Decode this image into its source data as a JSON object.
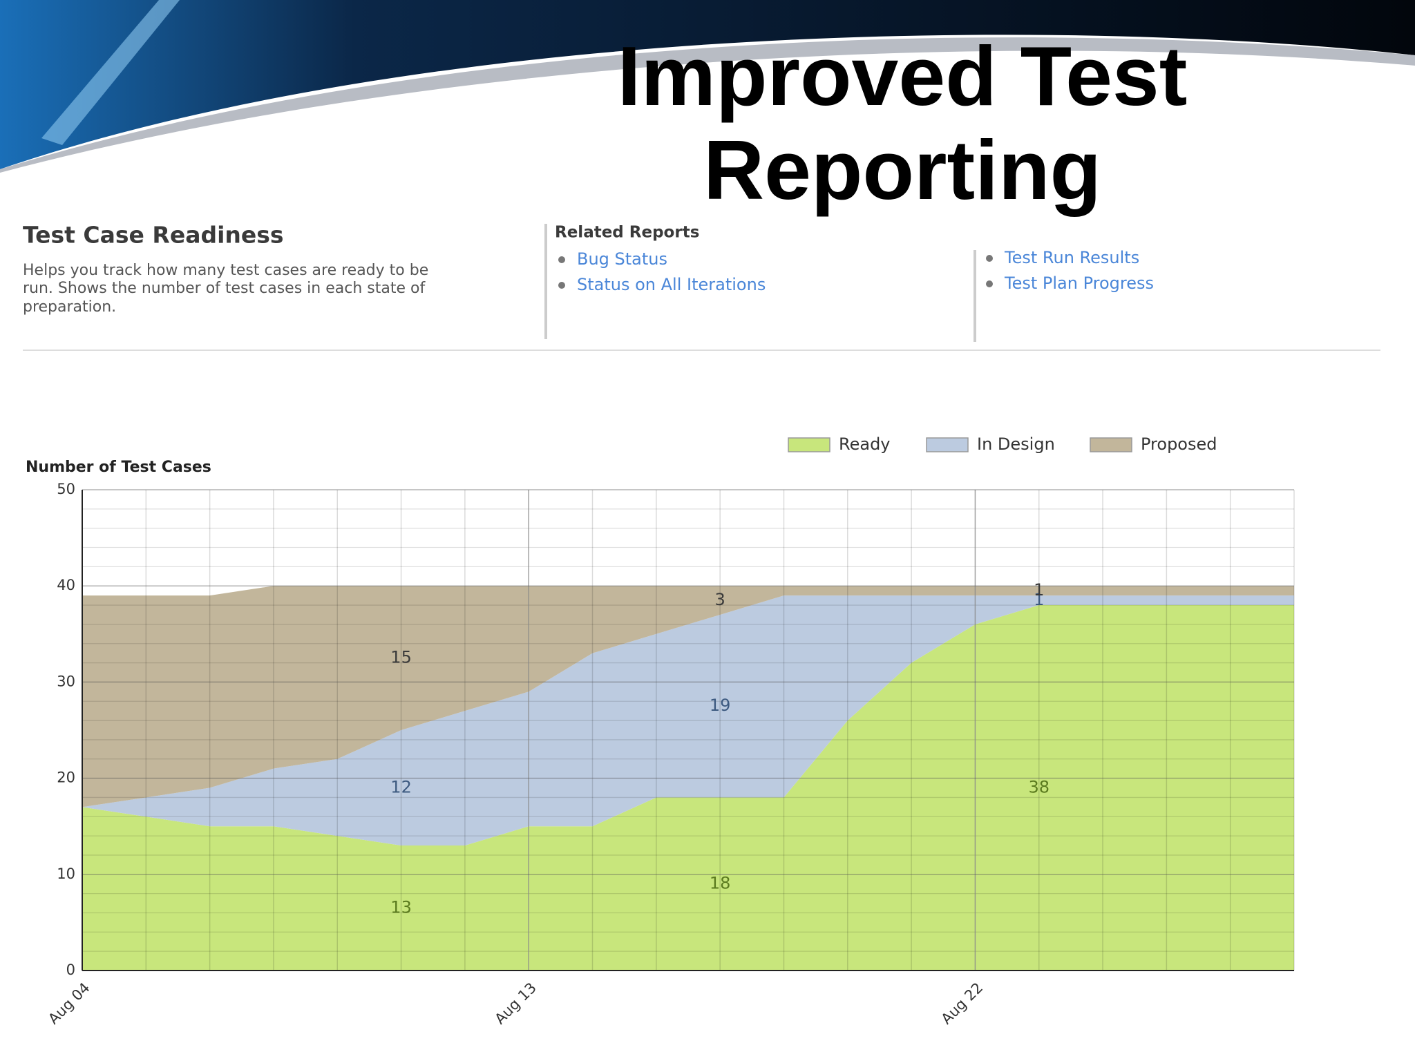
{
  "header": {
    "title_lines": [
      "Improved Test",
      "Reporting"
    ]
  },
  "report": {
    "title": "Test Case Readiness",
    "description": [
      "Helps you track how many test cases are ready to be",
      "run. Shows the number of test cases in each state of",
      "preparation."
    ],
    "related_title": "Related Reports",
    "links": [
      [
        "Bug Status",
        "Status on All Iterations"
      ],
      [
        "Test Run Results",
        "Test Plan Progress"
      ]
    ]
  },
  "chart_data": {
    "type": "stacked_area",
    "y_label": "Number of Test Cases",
    "categories": [
      "Aug 04",
      null,
      null,
      null,
      null,
      null,
      null,
      "Aug 13",
      null,
      null,
      null,
      null,
      null,
      null,
      "Aug 22",
      null,
      null,
      null,
      null,
      null
    ],
    "series": [
      {
        "name": "Ready",
        "color": "#c8e67c",
        "values": [
          17,
          16,
          15,
          15,
          14,
          13,
          13,
          15,
          15,
          18,
          18,
          18,
          26,
          32,
          36,
          38,
          38,
          38,
          38,
          38
        ]
      },
      {
        "name": "In Design",
        "color": "#bccbe0",
        "values": [
          0,
          2,
          4,
          6,
          8,
          12,
          14,
          14,
          18,
          17,
          19,
          21,
          13,
          7,
          3,
          1,
          1,
          1,
          1,
          1
        ]
      },
      {
        "name": "Proposed",
        "color": "#c2b69b",
        "values": [
          22,
          21,
          20,
          19,
          18,
          15,
          13,
          11,
          7,
          5,
          3,
          1,
          1,
          1,
          1,
          1,
          1,
          1,
          1,
          1
        ]
      }
    ],
    "labeled_points": [
      5,
      10,
      15
    ],
    "ylim": [
      0,
      50
    ],
    "yticks": [
      0,
      10,
      20,
      30,
      40,
      50
    ],
    "grid": true,
    "legend": "top-right"
  }
}
